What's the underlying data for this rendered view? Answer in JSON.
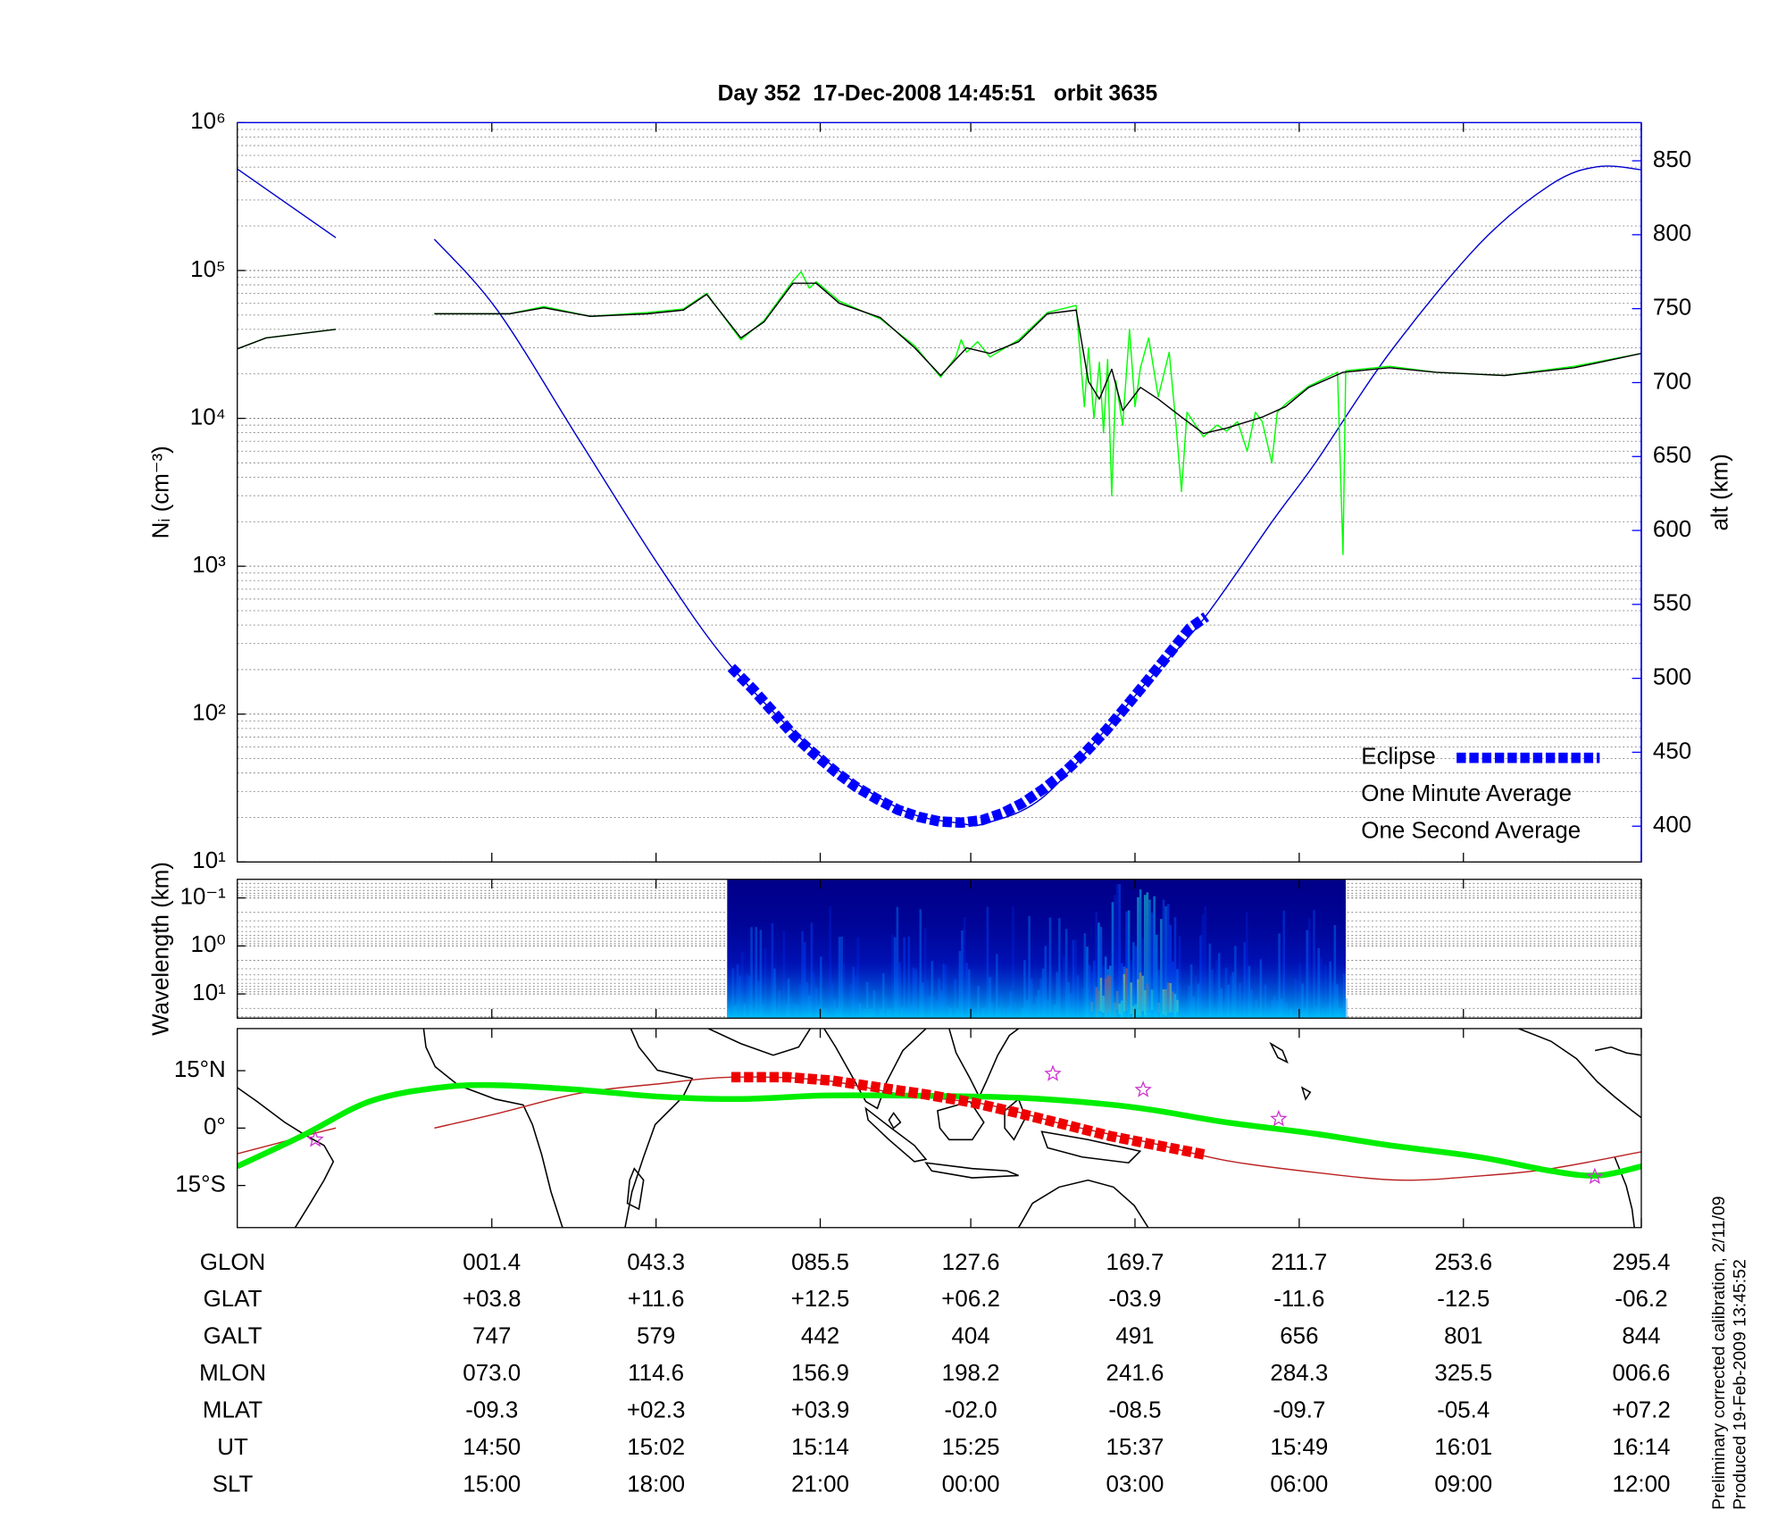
{
  "chart_data": [
    {
      "type": "line",
      "title": "Day 352  17-Dec-2008 14:45:51   orbit 3635",
      "ylabel": "Nᵢ (cm⁻³)",
      "y2label": "alt (km)",
      "y2_color": "#0000ff",
      "log_y": true,
      "grid": true,
      "minor_grid": true,
      "legend": "lower right",
      "xlim": [
        31.4,
        134
      ],
      "xticks": [
        50,
        62,
        74,
        85,
        97,
        109,
        121,
        134
      ],
      "ylim": [
        10,
        1000000
      ],
      "yticks": [
        {
          "value": 10,
          "label": "10¹"
        },
        {
          "value": 100,
          "label": "10²"
        },
        {
          "value": 1000,
          "label": "10³"
        },
        {
          "value": 10000,
          "label": "10⁴"
        },
        {
          "value": 100000,
          "label": "10⁵"
        },
        {
          "value": 1000000,
          "label": "10⁶"
        }
      ],
      "y2lim": [
        375.8,
        875.8
      ],
      "y2ticks": [
        400,
        450,
        500,
        550,
        600,
        650,
        700,
        750,
        800,
        850
      ],
      "series": [
        {
          "name": "Eclipse",
          "color": "#0000ff",
          "axis": "y2",
          "marker": "square",
          "x": [
            67.5,
            69.1,
            70.6,
            72.1,
            73.6,
            75.1,
            76.6,
            78.2,
            79.7,
            81.2,
            82.7,
            84.3,
            85.8,
            87.3,
            88.8,
            90.3,
            91.9,
            93.4,
            94.9,
            96.4,
            98.0,
            99.5,
            101.0,
            102.2
          ],
          "values": [
            507.3,
            492.4,
            476.8,
            461.1,
            448.6,
            436.9,
            426.7,
            418.1,
            411.0,
            406.3,
            403.2,
            402.4,
            404.0,
            408.7,
            415.7,
            425.1,
            436.9,
            450.2,
            465.0,
            481.5,
            499.5,
            516.7,
            533.9,
            541.7
          ]
        },
        {
          "name": "One Minute Average",
          "color": "#000000",
          "x": [
            31.4,
            33.5,
            38.6,
            42,
            45.8,
            51.3,
            53.8,
            57.2,
            61.4,
            64,
            65.7,
            68.2,
            69.9,
            72,
            73.7,
            75.4,
            78.4,
            80.9,
            82.8,
            84.7,
            86.4,
            88.5,
            90.6,
            92.7,
            93.6,
            94.4,
            95.3,
            96.1,
            97.4,
            98.7,
            100.4,
            102.0,
            103.7,
            106.3,
            108.0,
            109.7,
            112.2,
            115.6,
            119,
            124,
            129.1,
            134
          ],
          "values": [
            29500,
            35000,
            40000,
            null,
            51000,
            51000,
            56000,
            49000,
            51000,
            54000,
            69000,
            35000,
            45000,
            82000,
            82000,
            60000,
            48000,
            30000,
            19500,
            30000,
            27500,
            33000,
            51000,
            54000,
            17800,
            13500,
            21500,
            11300,
            16200,
            13500,
            10200,
            7900,
            8600,
            10200,
            12000,
            16200,
            20500,
            22000,
            20500,
            19500,
            22000,
            27500
          ]
        },
        {
          "name": "One Second Average",
          "color": "#00ff00",
          "x": [
            31.4,
            33.5,
            38.6,
            42,
            45.8,
            51.3,
            53.8,
            57.2,
            61.4,
            64,
            65.7,
            68.2,
            69.9,
            72,
            72.6,
            73.2,
            73.7,
            75.4,
            78.4,
            80.9,
            82.8,
            83.9,
            84.3,
            84.7,
            85.5,
            86.4,
            88.5,
            90.6,
            92.7,
            93.3,
            93.6,
            94.0,
            94.4,
            94.7,
            95.0,
            95.3,
            95.6,
            96.1,
            96.6,
            97.0,
            97.4,
            98.0,
            98.7,
            99.5,
            100.0,
            100.4,
            100.8,
            102.0,
            103.0,
            103.7,
            104.5,
            105.2,
            105.8,
            106.3,
            107,
            107.4,
            108.0,
            109.7,
            111.8,
            112.2,
            112.4,
            115.6,
            119,
            124,
            129.1,
            134
          ],
          "values": [
            29500,
            35000,
            40000,
            null,
            51000,
            51000,
            57000,
            49000,
            52000,
            55000,
            70000,
            34000,
            46000,
            85000,
            98000,
            76000,
            84000,
            62000,
            47000,
            31000,
            19000,
            26000,
            34000,
            28000,
            33000,
            26000,
            34000,
            52000,
            58000,
            12000,
            30000,
            10000,
            24000,
            8000,
            25000,
            3000,
            18000,
            9000,
            40000,
            12000,
            22000,
            35000,
            14000,
            28000,
            9000,
            3200,
            11000,
            7500,
            9000,
            8200,
            9500,
            6000,
            11000,
            9500,
            5000,
            11000,
            12500,
            16500,
            20500,
            1200,
            21000,
            22500,
            20500,
            19500,
            22500,
            27500
          ]
        },
        {
          "color": "#0000cc",
          "axis": "y2",
          "smooth": true,
          "x": [
            31.4,
            38.6,
            42,
            45.8,
            50.4,
            56.4,
            62.3,
            67.5,
            74.2,
            80.0,
            84.2,
            86.1,
            90.2,
            95.3,
            98.2,
            102.0,
            107.1,
            110.2,
            115.6,
            122.2,
            127.4,
            130.8,
            134
          ],
          "values": [
            844.5,
            798,
            null,
            797,
            749,
            661,
            575,
            508,
            446,
            411,
            402,
            402,
            419,
            470,
            501,
            540,
            607,
            646,
            720,
            794,
            834,
            846,
            844
          ]
        }
      ]
    },
    {
      "type": "heatmap",
      "ylabel": "Wavelength (km)",
      "log_y": true,
      "grid": true,
      "minor_grid": true,
      "xlim": [
        31.4,
        134
      ],
      "xticks": [
        50,
        62,
        74,
        85,
        97,
        109,
        121,
        134
      ],
      "x_range": [
        67.2,
        112.4
      ],
      "ylim": [
        32,
        0.041
      ],
      "yticks": [
        {
          "value": 0.1,
          "label": "10⁻¹"
        },
        {
          "value": 1,
          "label": "10⁰"
        },
        {
          "value": 10,
          "label": "10¹"
        }
      ]
    },
    {
      "type": "map",
      "xlim": [
        31.4,
        134
      ],
      "xticks": [
        50,
        62,
        74,
        85,
        97,
        109,
        121,
        134
      ],
      "ylim": [
        -26,
        26
      ],
      "yticks": [
        {
          "value": 15,
          "label": "15°N"
        },
        {
          "value": 0,
          "label": "0°"
        },
        {
          "value": -15,
          "label": "15°S"
        }
      ],
      "series": [
        {
          "color": "#cc33cc",
          "marker": "star",
          "x": [
            37.1,
            91.0,
            97.6,
            107.5,
            130.6
          ],
          "values": [
            -3.0,
            14.2,
            10.0,
            2.4,
            -12.7
          ]
        },
        {
          "color": "#ee0000",
          "marker": "square",
          "x": [
            67.5,
            71.6,
            74.9,
            78.3,
            81.7,
            85.1,
            88.5,
            91.9,
            95.2,
            98.6,
            102.2
          ],
          "values": [
            13.3,
            13.3,
            12.4,
            10.6,
            8.8,
            6.7,
            3.9,
            0.9,
            -2.1,
            -4.5,
            -7.0
          ]
        },
        {
          "color": "#00ee00",
          "style": "thick",
          "smooth": true,
          "x": [
            31.4,
            36.1,
            41.1,
            46.2,
            50.4,
            56.4,
            62.3,
            68.2,
            74.2,
            80.0,
            86.1,
            90.2,
            95.3,
            98.7,
            103.7,
            110.2,
            115.6,
            122.2,
            127.4,
            130.8,
            134
          ],
          "values": [
            -10.0,
            -2.1,
            7.0,
            10.6,
            11.2,
            10.0,
            8.2,
            7.6,
            8.5,
            8.5,
            8.2,
            7.6,
            6.1,
            4.5,
            1.5,
            -1.5,
            -4.5,
            -7.6,
            -11.2,
            -12.4,
            -10.0
          ]
        },
        {
          "color": "#bb2222",
          "smooth": true,
          "x": [
            31.4,
            34.4,
            36.9,
            38.6,
            42,
            45.8,
            50.4,
            56.4,
            62.3,
            67.5,
            74.2,
            80.0,
            86.1,
            91.9,
            98.2,
            103.7,
            110.2,
            116.4,
            122.2,
            127.4,
            134
          ],
          "values": [
            -6.7,
            -3.9,
            -1.5,
            0,
            null,
            0,
            3.8,
            9.1,
            11.6,
            13.3,
            12.5,
            8.8,
            6.2,
            0.9,
            -3.9,
            -8.5,
            -11.6,
            -13.6,
            -12.5,
            -10.6,
            -6.2
          ]
        }
      ]
    }
  ],
  "table": {
    "rows": [
      {
        "label": "GLON",
        "cells": [
          "001.4",
          "043.3",
          "085.5",
          "127.6",
          "169.7",
          "211.7",
          "253.6",
          "295.4"
        ]
      },
      {
        "label": "GLAT",
        "cells": [
          "+03.8",
          "+11.6",
          "+12.5",
          "+06.2",
          "-03.9",
          "-11.6",
          "-12.5",
          "-06.2"
        ]
      },
      {
        "label": "GALT",
        "cells": [
          "747",
          "579",
          "442",
          "404",
          "491",
          "656",
          "801",
          "844"
        ]
      },
      {
        "label": "MLON",
        "cells": [
          "073.0",
          "114.6",
          "156.9",
          "198.2",
          "241.6",
          "284.3",
          "325.5",
          "006.6"
        ]
      },
      {
        "label": "MLAT",
        "cells": [
          "-09.3",
          "+02.3",
          "+03.9",
          "-02.0",
          "-08.5",
          "-09.7",
          "-05.4",
          "+07.2"
        ]
      },
      {
        "label": "UT",
        "cells": [
          "14:50",
          "15:02",
          "15:14",
          "15:25",
          "15:37",
          "15:49",
          "16:01",
          "16:14"
        ]
      },
      {
        "label": "SLT",
        "cells": [
          "15:00",
          "18:00",
          "21:00",
          "00:00",
          "03:00",
          "06:00",
          "09:00",
          "12:00"
        ]
      }
    ]
  },
  "footnotes": [
    "Preliminary corrected calibration, 2/11/09",
    "Produced 19-Feb-2009 13:45:52"
  ]
}
